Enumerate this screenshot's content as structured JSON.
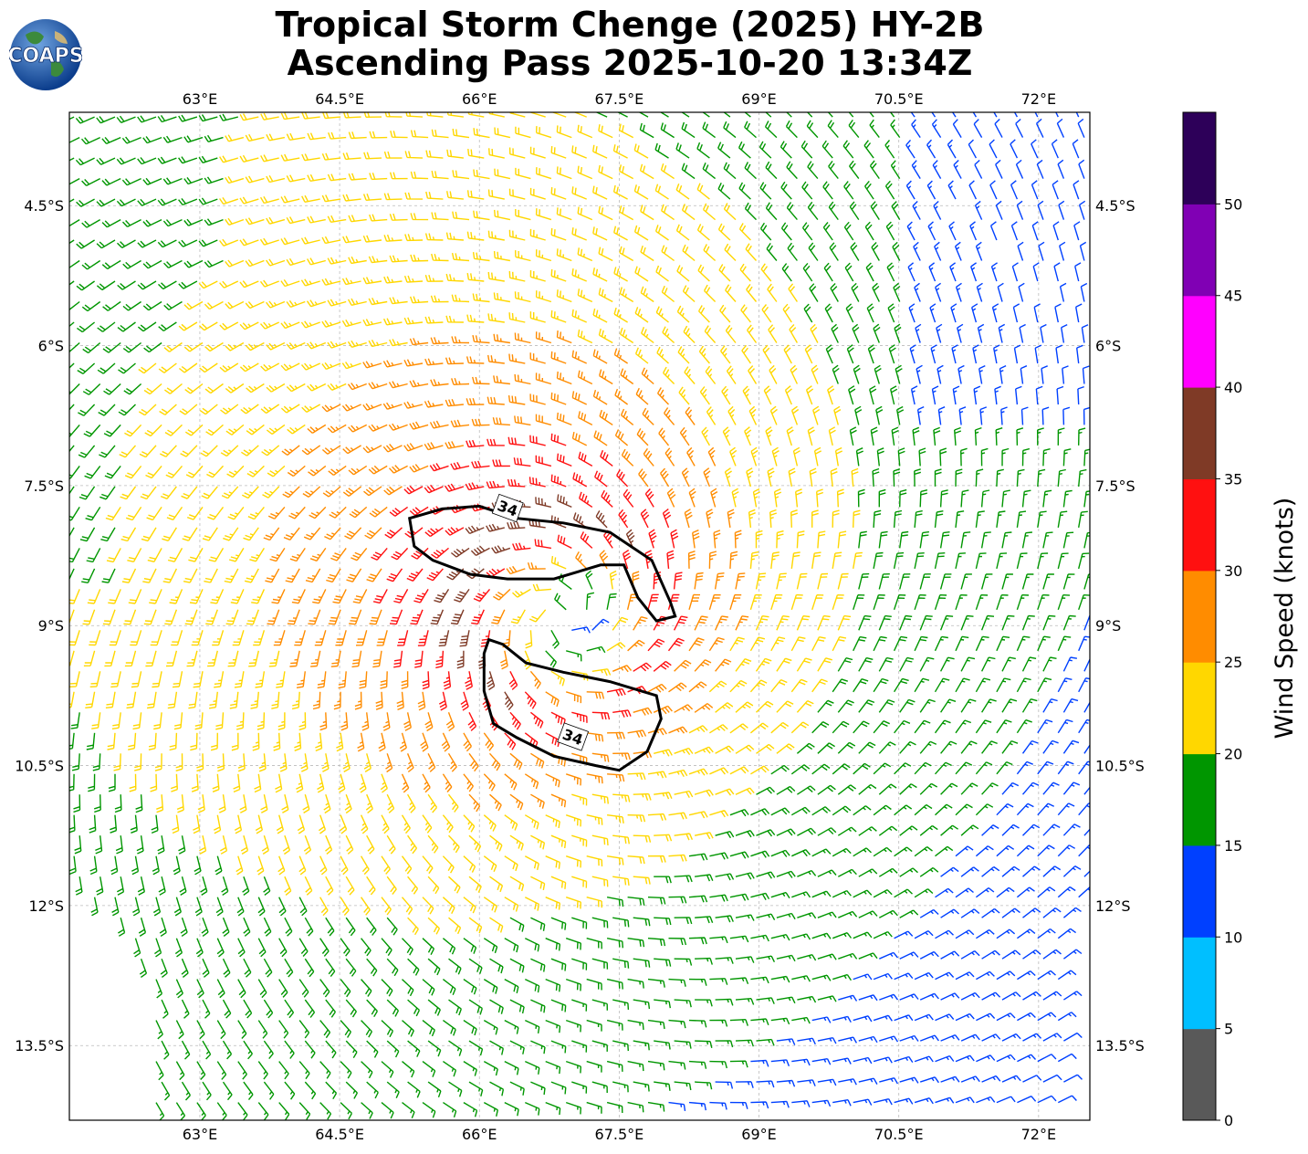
{
  "header": {
    "title_line1": "Tropical Storm Chenge (2025) HY-2B",
    "title_line2": "Ascending Pass 2025-10-20 13:34Z",
    "logo_text": "COAPS"
  },
  "map": {
    "lon_range": [
      61.6,
      72.55
    ],
    "lat_range": [
      -14.3,
      -3.5
    ],
    "lon_ticks": [
      "63°E",
      "64.5°E",
      "66°E",
      "67.5°E",
      "69°E",
      "70.5°E",
      "72°E"
    ],
    "lat_ticks": [
      "4.5°S",
      "6°S",
      "7.5°S",
      "9°S",
      "10.5°S",
      "12°S",
      "13.5°S"
    ],
    "storm_center": {
      "lon": 66.9,
      "lat": -8.9
    },
    "contour_labels": [
      "34",
      "34"
    ],
    "grid": true
  },
  "colorbar": {
    "title": "Wind Speed (knots)",
    "tick_labels": [
      "0",
      "5",
      "10",
      "15",
      "20",
      "25",
      "30",
      "35",
      "40",
      "45",
      "50"
    ],
    "bins": [
      {
        "min": 0,
        "max": 5,
        "color": "#595959"
      },
      {
        "min": 5,
        "max": 10,
        "color": "#00bfff"
      },
      {
        "min": 10,
        "max": 15,
        "color": "#0040ff"
      },
      {
        "min": 15,
        "max": 20,
        "color": "#009600"
      },
      {
        "min": 20,
        "max": 25,
        "color": "#ffd700"
      },
      {
        "min": 25,
        "max": 30,
        "color": "#ff8c00"
      },
      {
        "min": 30,
        "max": 35,
        "color": "#ff1010"
      },
      {
        "min": 35,
        "max": 40,
        "color": "#7f3a26"
      },
      {
        "min": 40,
        "max": 45,
        "color": "#ff00ff"
      },
      {
        "min": 45,
        "max": 50,
        "color": "#8000b4"
      },
      {
        "min": 50,
        "max": 55,
        "color": "#2d0059"
      }
    ]
  }
}
